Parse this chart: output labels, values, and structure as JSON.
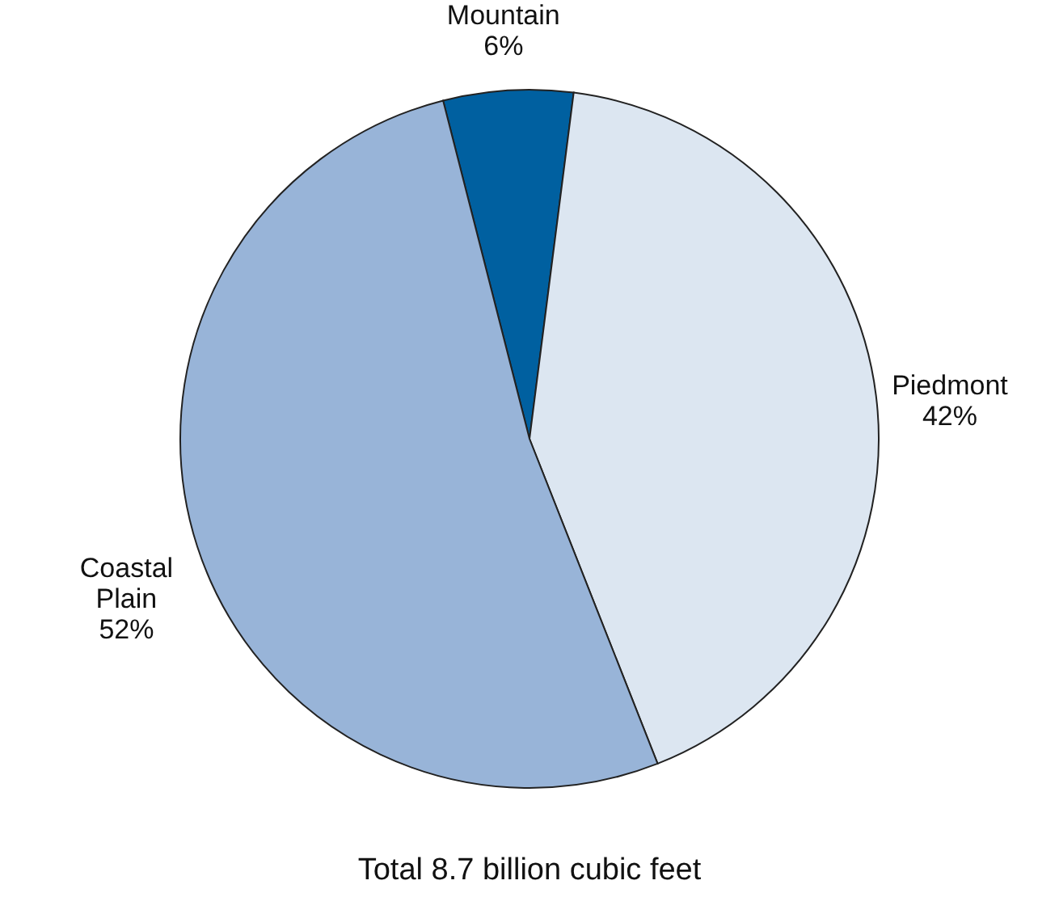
{
  "chart_data": {
    "type": "pie",
    "categories": [
      "Mountain",
      "Piedmont",
      "Coastal Plain"
    ],
    "values": [
      6,
      42,
      52
    ],
    "colors": [
      "#0060a0",
      "#dce6f1",
      "#98b4d8"
    ],
    "value_labels": [
      "6%",
      "42%",
      "52%"
    ],
    "data_labels": true,
    "legend": false,
    "annotations": [
      "Total 8.7 billion cubic feet"
    ]
  }
}
